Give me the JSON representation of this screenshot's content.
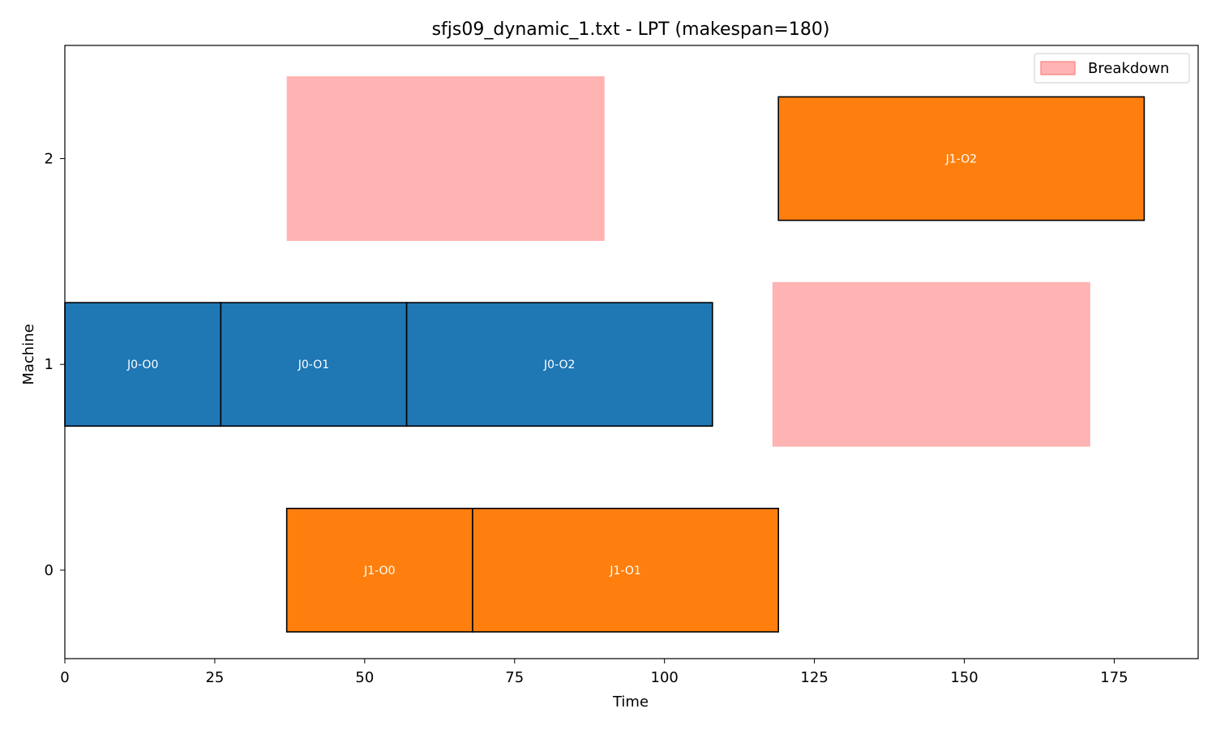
{
  "chart_data": {
    "type": "gantt",
    "title": "sfjs09_dynamic_1.txt - LPT (makespan=180)",
    "xlabel": "Time",
    "ylabel": "Machine",
    "xlim": [
      0,
      189
    ],
    "ylim": [
      -0.43,
      2.55
    ],
    "xticks": [
      0,
      25,
      50,
      75,
      100,
      125,
      150,
      175
    ],
    "yticks": [
      0,
      1,
      2
    ],
    "grid": false,
    "legend": {
      "position": "top-right",
      "entries": [
        {
          "label": "Breakdown",
          "color": "#ffb3b3"
        }
      ]
    },
    "colors": {
      "J0": "#1f77b4",
      "J1": "#ff7f0e",
      "breakdown": "#ffb3b3"
    },
    "operations": [
      {
        "label": "J0-O0",
        "job": "J0",
        "machine": 1,
        "start": 0,
        "end": 26
      },
      {
        "label": "J0-O1",
        "job": "J0",
        "machine": 1,
        "start": 26,
        "end": 57
      },
      {
        "label": "J0-O2",
        "job": "J0",
        "machine": 1,
        "start": 57,
        "end": 108
      },
      {
        "label": "J1-O0",
        "job": "J1",
        "machine": 0,
        "start": 37,
        "end": 68
      },
      {
        "label": "J1-O1",
        "job": "J1",
        "machine": 0,
        "start": 68,
        "end": 119
      },
      {
        "label": "J1-O2",
        "job": "J1",
        "machine": 2,
        "start": 119,
        "end": 180
      }
    ],
    "breakdowns": [
      {
        "machine": 2,
        "start": 37,
        "end": 90
      },
      {
        "machine": 1,
        "start": 118,
        "end": 171
      }
    ]
  }
}
